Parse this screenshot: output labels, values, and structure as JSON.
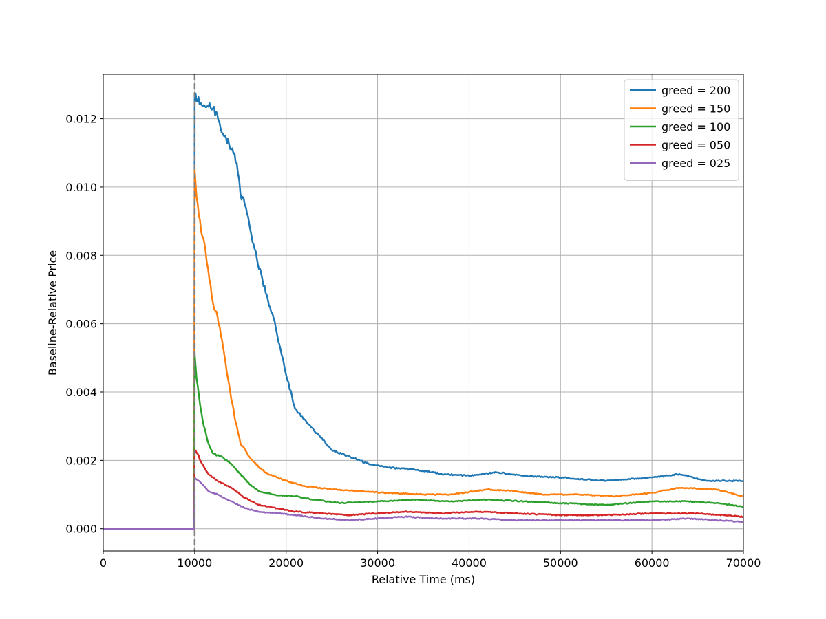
{
  "chart_data": {
    "type": "line",
    "title": "",
    "xlabel": "Relative Time (ms)",
    "ylabel": "Baseline-Relative Price",
    "xlim": [
      0,
      70000
    ],
    "ylim": [
      -0.00065,
      0.0133
    ],
    "xticks": [
      0,
      10000,
      20000,
      30000,
      40000,
      50000,
      60000,
      70000
    ],
    "xtick_labels": [
      "0",
      "10000",
      "20000",
      "30000",
      "40000",
      "50000",
      "60000",
      "70000"
    ],
    "yticks": [
      0.0,
      0.002,
      0.004,
      0.006,
      0.008,
      0.01,
      0.012
    ],
    "ytick_labels": [
      "0.000",
      "0.002",
      "0.004",
      "0.006",
      "0.008",
      "0.010",
      "0.012"
    ],
    "grid": true,
    "legend_position": "top-right",
    "vline": {
      "x": 10000,
      "color": "#7f7f7f",
      "style": "dashed"
    },
    "series": [
      {
        "name": "greed = 200",
        "color": "#1f77b4",
        "points": [
          [
            0,
            0
          ],
          [
            9950,
            0
          ],
          [
            10000,
            0.0127
          ],
          [
            10300,
            0.0125
          ],
          [
            11000,
            0.0124
          ],
          [
            12000,
            0.0123
          ],
          [
            12700,
            0.0119
          ],
          [
            13300,
            0.0115
          ],
          [
            14000,
            0.0111
          ],
          [
            14600,
            0.0107
          ],
          [
            15000,
            0.0098
          ],
          [
            15600,
            0.0094
          ],
          [
            16200,
            0.0086
          ],
          [
            16800,
            0.0079
          ],
          [
            17400,
            0.0073
          ],
          [
            18000,
            0.0067
          ],
          [
            18500,
            0.0063
          ],
          [
            19000,
            0.0057
          ],
          [
            19500,
            0.0051
          ],
          [
            20000,
            0.0045
          ],
          [
            21000,
            0.0035
          ],
          [
            22000,
            0.0032
          ],
          [
            23000,
            0.0029
          ],
          [
            24000,
            0.0026
          ],
          [
            25000,
            0.0023
          ],
          [
            27000,
            0.0021
          ],
          [
            29000,
            0.0019
          ],
          [
            31000,
            0.0018
          ],
          [
            33000,
            0.00175
          ],
          [
            35000,
            0.0017
          ],
          [
            37000,
            0.0016
          ],
          [
            40000,
            0.00155
          ],
          [
            43000,
            0.00165
          ],
          [
            46000,
            0.00155
          ],
          [
            50000,
            0.0015
          ],
          [
            55000,
            0.0014
          ],
          [
            60000,
            0.0015
          ],
          [
            63000,
            0.0016
          ],
          [
            66000,
            0.0014
          ],
          [
            68000,
            0.0014
          ],
          [
            70000,
            0.0014
          ]
        ]
      },
      {
        "name": "greed = 150",
        "color": "#ff7f0e",
        "points": [
          [
            0,
            0
          ],
          [
            9950,
            0
          ],
          [
            10000,
            0.0105
          ],
          [
            10200,
            0.0097
          ],
          [
            10700,
            0.0087
          ],
          [
            11200,
            0.0081
          ],
          [
            11600,
            0.0073
          ],
          [
            12000,
            0.0066
          ],
          [
            12500,
            0.0062
          ],
          [
            13000,
            0.0055
          ],
          [
            13500,
            0.0046
          ],
          [
            14000,
            0.0038
          ],
          [
            14500,
            0.0031
          ],
          [
            15000,
            0.0025
          ],
          [
            16000,
            0.0021
          ],
          [
            17000,
            0.0018
          ],
          [
            18000,
            0.0016
          ],
          [
            19000,
            0.0015
          ],
          [
            20000,
            0.0014
          ],
          [
            22000,
            0.00125
          ],
          [
            25000,
            0.00115
          ],
          [
            28000,
            0.0011
          ],
          [
            31000,
            0.00105
          ],
          [
            35000,
            0.001
          ],
          [
            38000,
            0.001
          ],
          [
            42000,
            0.00115
          ],
          [
            45000,
            0.0011
          ],
          [
            48000,
            0.001
          ],
          [
            52000,
            0.001
          ],
          [
            56000,
            0.00095
          ],
          [
            60000,
            0.00105
          ],
          [
            63000,
            0.0012
          ],
          [
            67000,
            0.00115
          ],
          [
            70000,
            0.00095
          ]
        ]
      },
      {
        "name": "greed = 100",
        "color": "#2ca02c",
        "points": [
          [
            0,
            0
          ],
          [
            9950,
            0
          ],
          [
            10000,
            0.0051
          ],
          [
            10200,
            0.0044
          ],
          [
            10600,
            0.0036
          ],
          [
            11000,
            0.003
          ],
          [
            11500,
            0.0025
          ],
          [
            12000,
            0.0022
          ],
          [
            13000,
            0.0021
          ],
          [
            14000,
            0.0019
          ],
          [
            15000,
            0.0016
          ],
          [
            16000,
            0.0013
          ],
          [
            17000,
            0.0011
          ],
          [
            19000,
            0.00098
          ],
          [
            21000,
            0.00095
          ],
          [
            23000,
            0.00085
          ],
          [
            26000,
            0.00075
          ],
          [
            30000,
            0.0008
          ],
          [
            34000,
            0.00085
          ],
          [
            38000,
            0.0008
          ],
          [
            42000,
            0.00085
          ],
          [
            46000,
            0.0008
          ],
          [
            50000,
            0.00075
          ],
          [
            55000,
            0.0007
          ],
          [
            60000,
            0.0008
          ],
          [
            64000,
            0.0008
          ],
          [
            67000,
            0.00075
          ],
          [
            70000,
            0.00065
          ]
        ]
      },
      {
        "name": "greed = 050",
        "color": "#d62728",
        "points": [
          [
            0,
            0
          ],
          [
            9950,
            0
          ],
          [
            10000,
            0.0023
          ],
          [
            10300,
            0.0022
          ],
          [
            10800,
            0.0019
          ],
          [
            11500,
            0.0016
          ],
          [
            12500,
            0.0014
          ],
          [
            14000,
            0.0012
          ],
          [
            15500,
            0.0009
          ],
          [
            17000,
            0.0007
          ],
          [
            19000,
            0.0006
          ],
          [
            21000,
            0.0005
          ],
          [
            24000,
            0.00045
          ],
          [
            27000,
            0.0004
          ],
          [
            30000,
            0.00045
          ],
          [
            33000,
            0.0005
          ],
          [
            37000,
            0.00045
          ],
          [
            41000,
            0.0005
          ],
          [
            45000,
            0.00045
          ],
          [
            50000,
            0.0004
          ],
          [
            55000,
            0.0004
          ],
          [
            60000,
            0.00045
          ],
          [
            65000,
            0.00045
          ],
          [
            70000,
            0.00035
          ]
        ]
      },
      {
        "name": "greed = 025",
        "color": "#9467bd",
        "points": [
          [
            0,
            0
          ],
          [
            9950,
            0
          ],
          [
            10000,
            0.0015
          ],
          [
            10500,
            0.0014
          ],
          [
            11500,
            0.0011
          ],
          [
            12500,
            0.001
          ],
          [
            14000,
            0.0008
          ],
          [
            15500,
            0.0006
          ],
          [
            17000,
            0.0005
          ],
          [
            19000,
            0.00045
          ],
          [
            21000,
            0.0004
          ],
          [
            24000,
            0.0003
          ],
          [
            27000,
            0.00025
          ],
          [
            30000,
            0.0003
          ],
          [
            33000,
            0.00035
          ],
          [
            37000,
            0.0003
          ],
          [
            41000,
            0.0003
          ],
          [
            45000,
            0.00025
          ],
          [
            50000,
            0.00025
          ],
          [
            55000,
            0.00025
          ],
          [
            60000,
            0.00025
          ],
          [
            64000,
            0.0003
          ],
          [
            67000,
            0.00025
          ],
          [
            70000,
            0.0002
          ]
        ]
      }
    ]
  }
}
